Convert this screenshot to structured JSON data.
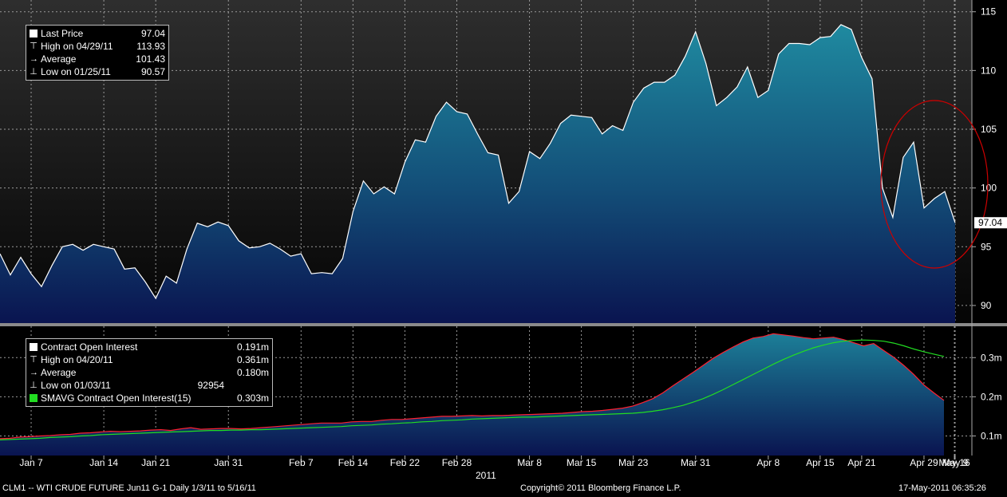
{
  "price_legend": {
    "rows": [
      {
        "label": "Last Price",
        "value": "97.04",
        "symbol": "square"
      },
      {
        "label": "High on 04/29/11",
        "value": "113.93",
        "symbol": "high"
      },
      {
        "label": "Average",
        "value": "101.43",
        "symbol": "avg"
      },
      {
        "label": "Low on 01/25/11",
        "value": "90.57",
        "symbol": "low"
      }
    ]
  },
  "oi_legend": {
    "rows": [
      {
        "label": "Contract Open Interest",
        "value": "0.191m",
        "symbol": "square"
      },
      {
        "label": "High on 04/20/11",
        "value": "0.361m",
        "symbol": "high"
      },
      {
        "label": "Average",
        "value": "0.180m",
        "symbol": "avg"
      },
      {
        "label": "Low on 01/03/11",
        "value": "92954",
        "symbol": "low"
      },
      {
        "label": "SMAVG Contract Open Interest(15)",
        "value": "0.303m",
        "symbol": "green"
      }
    ]
  },
  "footer": {
    "left": "CLM1 -- WTI CRUDE FUTURE  Jun11    G-1  Daily  1/3/11 to 5/16/11",
    "center": "Copyright© 2011 Bloomberg Finance L.P.",
    "right": "17-May-2011 06:35:26"
  },
  "year_label": "2011",
  "colors": {
    "line": "#ffffff",
    "fill_top": "#1f8aa0",
    "fill_bottom": "#0a1450",
    "oi_line": "#ff2030",
    "sma": "#22dd22",
    "circle": "#cc0000",
    "grid": "#9a9a9a"
  },
  "chart_data": [
    {
      "type": "area",
      "ylim": [
        88.5,
        116
      ],
      "yticks": [
        90,
        95,
        100,
        105,
        110,
        115
      ],
      "xlabels": [
        "Jan 7",
        "Jan 14",
        "Jan 21",
        "Jan 31",
        "Feb 7",
        "Feb 14",
        "Feb 22",
        "Feb 28",
        "Mar 8",
        "Mar 15",
        "Mar 23",
        "Mar 31",
        "Apr 8",
        "Apr 15",
        "Apr 21",
        "Apr 29",
        "May 9",
        "May 16"
      ],
      "last_value_label": "97.04",
      "values": [
        94.4,
        92.6,
        94.1,
        92.7,
        91.6,
        93.4,
        95.0,
        95.2,
        94.7,
        95.2,
        95.0,
        94.8,
        93.1,
        93.2,
        92.0,
        90.6,
        92.5,
        91.9,
        94.8,
        97.0,
        96.7,
        97.1,
        96.8,
        95.5,
        94.9,
        95.0,
        95.3,
        94.8,
        94.2,
        94.4,
        92.7,
        92.8,
        92.7,
        94.0,
        98.0,
        100.6,
        99.5,
        100.1,
        99.5,
        102.2,
        104.1,
        103.9,
        106.1,
        107.3,
        106.5,
        106.3,
        104.6,
        103.0,
        102.8,
        98.7,
        99.7,
        103.1,
        102.5,
        103.8,
        105.5,
        106.2,
        106.1,
        106.0,
        104.6,
        105.3,
        104.9,
        107.3,
        108.5,
        109.0,
        109.0,
        109.6,
        111.2,
        113.3,
        110.6,
        107.0,
        107.7,
        108.6,
        110.3,
        107.7,
        108.3,
        111.4,
        112.3,
        112.3,
        112.2,
        112.8,
        112.9,
        113.9,
        113.5,
        111.1,
        109.3,
        100.0,
        97.5,
        102.6,
        103.9,
        98.3,
        99.1,
        99.7,
        97.04
      ]
    },
    {
      "type": "area",
      "ylim": [
        0.05,
        0.38
      ],
      "yticks": [
        "0.1m",
        "0.2m",
        "0.3m"
      ],
      "ytick_values": [
        0.1,
        0.2,
        0.3
      ],
      "series": [
        {
          "name": "Contract Open Interest",
          "values": [
            0.093,
            0.094,
            0.097,
            0.098,
            0.1,
            0.101,
            0.103,
            0.104,
            0.107,
            0.108,
            0.11,
            0.112,
            0.111,
            0.112,
            0.113,
            0.115,
            0.116,
            0.114,
            0.118,
            0.121,
            0.117,
            0.118,
            0.119,
            0.119,
            0.118,
            0.119,
            0.121,
            0.123,
            0.125,
            0.127,
            0.129,
            0.131,
            0.133,
            0.133,
            0.133,
            0.136,
            0.137,
            0.137,
            0.14,
            0.142,
            0.142,
            0.144,
            0.146,
            0.148,
            0.15,
            0.15,
            0.151,
            0.152,
            0.151,
            0.152,
            0.152,
            0.153,
            0.154,
            0.155,
            0.156,
            0.157,
            0.158,
            0.16,
            0.162,
            0.163,
            0.165,
            0.168,
            0.171,
            0.176,
            0.185,
            0.195,
            0.21,
            0.228,
            0.245,
            0.262,
            0.28,
            0.298,
            0.313,
            0.327,
            0.34,
            0.35,
            0.354,
            0.361,
            0.358,
            0.355,
            0.351,
            0.348,
            0.35,
            0.352,
            0.346,
            0.338,
            0.33,
            0.336,
            0.318,
            0.301,
            0.28,
            0.257,
            0.23,
            0.21,
            0.191
          ]
        },
        {
          "name": "SMAVG Contract Open Interest(15)",
          "values": [
            0.09,
            0.091,
            0.092,
            0.093,
            0.094,
            0.096,
            0.097,
            0.098,
            0.1,
            0.101,
            0.103,
            0.104,
            0.105,
            0.106,
            0.107,
            0.108,
            0.109,
            0.11,
            0.111,
            0.112,
            0.113,
            0.114,
            0.114,
            0.115,
            0.115,
            0.116,
            0.116,
            0.117,
            0.118,
            0.119,
            0.12,
            0.121,
            0.122,
            0.123,
            0.124,
            0.126,
            0.127,
            0.128,
            0.13,
            0.131,
            0.133,
            0.134,
            0.136,
            0.137,
            0.139,
            0.14,
            0.141,
            0.143,
            0.144,
            0.145,
            0.146,
            0.147,
            0.148,
            0.148,
            0.149,
            0.15,
            0.151,
            0.152,
            0.153,
            0.154,
            0.155,
            0.156,
            0.157,
            0.158,
            0.16,
            0.163,
            0.167,
            0.172,
            0.178,
            0.186,
            0.195,
            0.206,
            0.218,
            0.231,
            0.244,
            0.257,
            0.27,
            0.283,
            0.295,
            0.306,
            0.316,
            0.325,
            0.332,
            0.338,
            0.342,
            0.344,
            0.345,
            0.344,
            0.342,
            0.337,
            0.33,
            0.322,
            0.315,
            0.309,
            0.303
          ]
        }
      ]
    }
  ]
}
